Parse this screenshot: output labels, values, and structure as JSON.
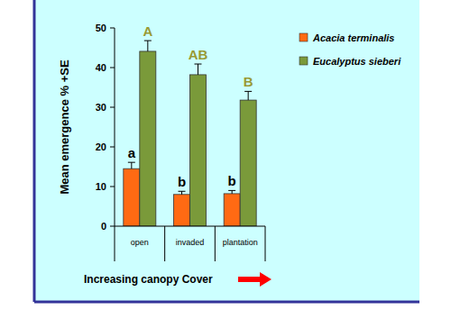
{
  "chart_data": {
    "type": "bar",
    "y_label": "Mean emergence % +SE",
    "x_label": "Increasing canopy Cover",
    "categories": [
      "open",
      "invaded",
      "plantation"
    ],
    "series": [
      {
        "name": "Acacia terminalis",
        "color": "#ff6a13",
        "values": [
          14.5,
          8.0,
          8.2
        ],
        "errors": [
          1.6,
          0.8,
          0.8
        ],
        "significance": [
          "a",
          "b",
          "b"
        ]
      },
      {
        "name": "Eucalyptus sieberi",
        "color": "#7a9a3a",
        "values": [
          44.1,
          38.2,
          31.8
        ],
        "errors": [
          2.7,
          2.7,
          2.2
        ],
        "significance": [
          "A",
          "AB",
          "B"
        ]
      }
    ],
    "ylim": [
      0,
      50
    ],
    "yticks": [
      0,
      10,
      20,
      30,
      40,
      50
    ],
    "grid": false,
    "legend": "top right"
  }
}
